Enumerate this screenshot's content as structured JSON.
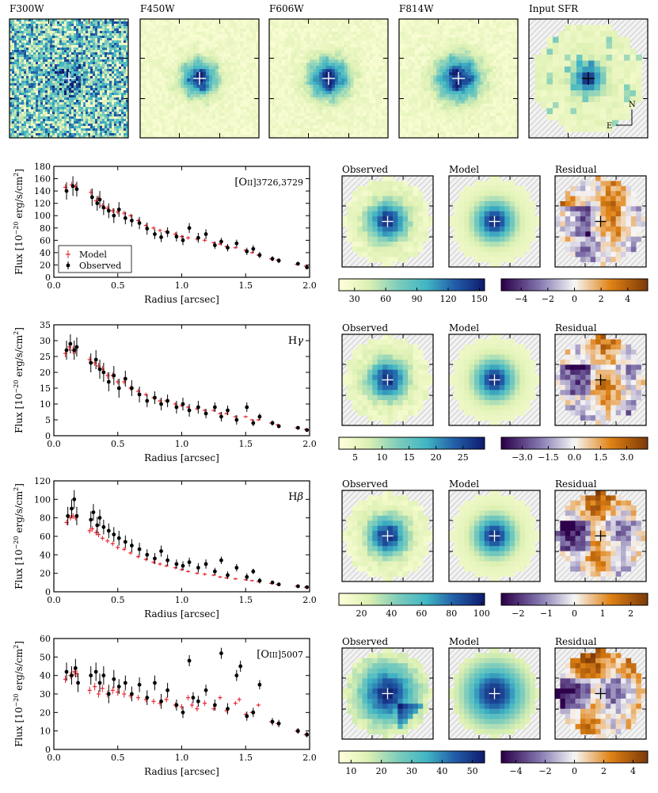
{
  "colors": {
    "model": "#e8202a",
    "observed": "#000000",
    "hatch": "#c8c8c8"
  },
  "image_strip": {
    "panels": [
      {
        "label": "F300W",
        "icon": "noisy-image"
      },
      {
        "label": "F450W",
        "icon": "galaxy-image"
      },
      {
        "label": "F606W",
        "icon": "galaxy-image"
      },
      {
        "label": "F814W",
        "icon": "galaxy-image"
      },
      {
        "label": "Input SFR",
        "icon": "pixel-map"
      }
    ],
    "compass": {
      "north": "N",
      "east": "E"
    }
  },
  "map_titles": {
    "observed": "Observed",
    "model": "Model",
    "residual": "Residual"
  },
  "chart_data": [
    {
      "type": "scatter",
      "line_main": "[O",
      "line_ion": "II",
      "line_tail": "]3726,3729",
      "xlabel": "Radius [arcsec]",
      "ylabel": "Flux  [10",
      "ylabel_exp": "−20",
      "ylabel_units": " erg/s/cm",
      "ylabel_pow": "2",
      "ylabel_close": "]",
      "xlim": [
        0,
        2.0
      ],
      "ylim": [
        0,
        180
      ],
      "xticks": [
        "0.0",
        "0.5",
        "1.0",
        "1.5",
        "2.0"
      ],
      "xtick_values": [
        0,
        0.5,
        1.0,
        1.5,
        2.0
      ],
      "yticks": [
        "0",
        "20",
        "40",
        "60",
        "80",
        "100",
        "120",
        "140",
        "160",
        "180"
      ],
      "ytick_values": [
        0,
        20,
        40,
        60,
        80,
        100,
        120,
        140,
        160,
        180
      ],
      "legend": [
        {
          "name": "Model",
          "marker": "cross"
        },
        {
          "name": "Observed",
          "marker": "dot"
        }
      ],
      "legend_position": "bottom-left",
      "observed": {
        "x": [
          0.09,
          0.14,
          0.17,
          0.29,
          0.33,
          0.35,
          0.38,
          0.42,
          0.46,
          0.5,
          0.55,
          0.6,
          0.66,
          0.72,
          0.78,
          0.83,
          0.88,
          0.95,
          1.0,
          1.05,
          1.12,
          1.18,
          1.25,
          1.3,
          1.35,
          1.42,
          1.5,
          1.55,
          1.6,
          1.7,
          1.75,
          1.9,
          1.97
        ],
        "y": [
          140,
          148,
          143,
          130,
          120,
          126,
          113,
          108,
          100,
          110,
          96,
          92,
          88,
          79,
          70,
          65,
          73,
          66,
          60,
          80,
          64,
          70,
          52,
          58,
          48,
          55,
          42,
          46,
          36,
          30,
          27,
          22,
          16
        ],
        "err": [
          14,
          16,
          12,
          14,
          12,
          14,
          12,
          12,
          12,
          12,
          10,
          10,
          10,
          10,
          8,
          8,
          8,
          8,
          8,
          8,
          8,
          8,
          6,
          6,
          6,
          6,
          6,
          6,
          5,
          4,
          4,
          3,
          3
        ]
      },
      "model": {
        "x": [
          0.09,
          0.14,
          0.17,
          0.29,
          0.33,
          0.35,
          0.38,
          0.42,
          0.46,
          0.5,
          0.55,
          0.6,
          0.66,
          0.72,
          0.78,
          0.83,
          0.88,
          0.95,
          1.0,
          1.05,
          1.12,
          1.18,
          1.25,
          1.3,
          1.35,
          1.42,
          1.5,
          1.55,
          1.6,
          1.7,
          1.75,
          1.9,
          1.97
        ],
        "y": [
          146,
          150,
          147,
          138,
          124,
          128,
          116,
          112,
          108,
          106,
          104,
          100,
          92,
          84,
          80,
          76,
          74,
          70,
          66,
          64,
          62,
          60,
          56,
          54,
          50,
          48,
          44,
          40,
          36,
          30,
          28,
          21,
          18
        ],
        "err": [
          5,
          5,
          5,
          5,
          4,
          4,
          4,
          4,
          4,
          4,
          4,
          3,
          3,
          3,
          3,
          3,
          3,
          3,
          3,
          3,
          3,
          3,
          2,
          2,
          2,
          2,
          2,
          2,
          2,
          2,
          2,
          2,
          2
        ]
      },
      "observed_cbar": {
        "ticks": [
          "30",
          "60",
          "90",
          "120",
          "150"
        ],
        "tick_values": [
          30,
          60,
          90,
          120,
          150
        ],
        "range": [
          15,
          155
        ]
      },
      "residual_cbar": {
        "ticks": [
          "−4",
          "−2",
          "0",
          "2",
          "4"
        ],
        "tick_values": [
          -4,
          -2,
          0,
          2,
          4
        ],
        "range": [
          -5.5,
          5.5
        ]
      }
    },
    {
      "type": "scatter",
      "line_main": "H",
      "line_ion": "",
      "line_tail": "γ",
      "xlabel": "Radius [arcsec]",
      "ylabel": "Flux  [10",
      "ylabel_exp": "−20",
      "ylabel_units": " erg/s/cm",
      "ylabel_pow": "2",
      "ylabel_close": "]",
      "xlim": [
        0,
        2.0
      ],
      "ylim": [
        0,
        35
      ],
      "xticks": [
        "0.0",
        "0.5",
        "1.0",
        "1.5",
        "2.0"
      ],
      "xtick_values": [
        0,
        0.5,
        1.0,
        1.5,
        2.0
      ],
      "yticks": [
        "0",
        "5",
        "10",
        "15",
        "20",
        "25",
        "30",
        "35"
      ],
      "ytick_values": [
        0,
        5,
        10,
        15,
        20,
        25,
        30,
        35
      ],
      "observed": {
        "x": [
          0.09,
          0.12,
          0.15,
          0.17,
          0.28,
          0.32,
          0.35,
          0.38,
          0.42,
          0.46,
          0.5,
          0.55,
          0.6,
          0.66,
          0.72,
          0.78,
          0.83,
          0.88,
          0.95,
          1.0,
          1.05,
          1.12,
          1.18,
          1.25,
          1.3,
          1.35,
          1.42,
          1.5,
          1.55,
          1.6,
          1.7,
          1.75,
          1.9,
          1.97
        ],
        "y": [
          27,
          29,
          27,
          28,
          23,
          24,
          21,
          20,
          17,
          19,
          15,
          18,
          15,
          13,
          11,
          12,
          10,
          11,
          9,
          10,
          8,
          9,
          7,
          9,
          6,
          8,
          5,
          9,
          4,
          6,
          4,
          3,
          2.5,
          1.8
        ],
        "err": [
          3,
          3,
          3,
          3,
          3,
          3,
          3,
          3,
          3,
          3,
          3,
          2.5,
          2.5,
          2.5,
          2,
          2,
          2,
          2,
          2,
          2,
          2,
          2,
          1.5,
          1.5,
          1.5,
          1.5,
          1.5,
          1.5,
          1,
          1,
          0.8,
          0.6,
          0.5,
          0.4
        ]
      },
      "model": {
        "x": [
          0.09,
          0.12,
          0.15,
          0.17,
          0.28,
          0.32,
          0.35,
          0.38,
          0.42,
          0.46,
          0.5,
          0.55,
          0.6,
          0.66,
          0.72,
          0.78,
          0.83,
          0.88,
          0.95,
          1.0,
          1.05,
          1.12,
          1.18,
          1.25,
          1.3,
          1.35,
          1.42,
          1.5,
          1.55,
          1.6,
          1.7,
          1.75,
          1.9,
          1.97
        ],
        "y": [
          26,
          28,
          27,
          27,
          24,
          23,
          22,
          21,
          19,
          19,
          17,
          17,
          15,
          14,
          13,
          12,
          11,
          11,
          10,
          9.5,
          9,
          8.5,
          8,
          8,
          7,
          7,
          6,
          6,
          5,
          5,
          4,
          3.5,
          2.5,
          2
        ],
        "err": [
          1.2,
          1.2,
          1.2,
          1.2,
          1,
          1,
          1,
          1,
          1,
          1,
          0.8,
          0.8,
          0.8,
          0.8,
          0.6,
          0.6,
          0.6,
          0.6,
          0.5,
          0.5,
          0.5,
          0.5,
          0.4,
          0.4,
          0.4,
          0.4,
          0.4,
          0.4,
          0.3,
          0.3,
          0.3,
          0.3,
          0.3,
          0.3
        ]
      },
      "observed_cbar": {
        "ticks": [
          "5",
          "10",
          "15",
          "20",
          "25"
        ],
        "tick_values": [
          5,
          10,
          15,
          20,
          25
        ],
        "range": [
          2,
          29
        ]
      },
      "residual_cbar": {
        "ticks": [
          "−3.0",
          "−1.5",
          "0.0",
          "1.5",
          "3.0"
        ],
        "tick_values": [
          -3,
          -1.5,
          0,
          1.5,
          3
        ],
        "range": [
          -4.2,
          4.2
        ]
      }
    },
    {
      "type": "scatter",
      "line_main": "H",
      "line_ion": "",
      "line_tail": "β",
      "xlabel": "Radius [arcsec]",
      "ylabel": "Flux  [10",
      "ylabel_exp": "−20",
      "ylabel_units": " erg/s/cm",
      "ylabel_pow": "2",
      "ylabel_close": "]",
      "xlim": [
        0,
        2.0
      ],
      "ylim": [
        0,
        120
      ],
      "xticks": [
        "0.0",
        "0.5",
        "1.0",
        "1.5",
        "2.0"
      ],
      "xtick_values": [
        0,
        0.5,
        1.0,
        1.5,
        2.0
      ],
      "yticks": [
        "0",
        "20",
        "40",
        "60",
        "80",
        "100",
        "120"
      ],
      "ytick_values": [
        0,
        20,
        40,
        60,
        80,
        100,
        120
      ],
      "observed": {
        "x": [
          0.1,
          0.13,
          0.15,
          0.17,
          0.28,
          0.3,
          0.33,
          0.35,
          0.38,
          0.42,
          0.46,
          0.5,
          0.55,
          0.6,
          0.66,
          0.72,
          0.78,
          0.83,
          0.88,
          0.95,
          1.0,
          1.05,
          1.12,
          1.18,
          1.25,
          1.3,
          1.35,
          1.42,
          1.5,
          1.55,
          1.6,
          1.7,
          1.75,
          1.9,
          1.97
        ],
        "y": [
          82,
          90,
          100,
          82,
          78,
          86,
          72,
          80,
          70,
          66,
          62,
          58,
          54,
          50,
          46,
          40,
          36,
          44,
          34,
          30,
          28,
          32,
          26,
          30,
          22,
          34,
          18,
          26,
          16,
          22,
          12,
          10,
          8,
          6,
          5
        ],
        "err": [
          10,
          10,
          10,
          10,
          9,
          9,
          9,
          9,
          8,
          8,
          8,
          8,
          7,
          7,
          7,
          6,
          6,
          6,
          6,
          5,
          5,
          5,
          5,
          5,
          4,
          4,
          4,
          4,
          4,
          3,
          3,
          2,
          2,
          1.5,
          1.5
        ]
      },
      "model": {
        "x": [
          0.1,
          0.13,
          0.15,
          0.17,
          0.28,
          0.3,
          0.33,
          0.35,
          0.38,
          0.42,
          0.46,
          0.5,
          0.55,
          0.6,
          0.66,
          0.72,
          0.78,
          0.83,
          0.88,
          0.95,
          1.0,
          1.05,
          1.12,
          1.18,
          1.25,
          1.3,
          1.35,
          1.42,
          1.5,
          1.55,
          1.6,
          1.7,
          1.75,
          1.9,
          1.97
        ],
        "y": [
          75,
          80,
          82,
          80,
          66,
          68,
          64,
          62,
          58,
          55,
          52,
          48,
          46,
          42,
          38,
          35,
          32,
          30,
          28,
          26,
          24,
          22,
          20,
          19,
          18,
          16,
          15,
          14,
          13,
          12,
          11,
          9,
          8,
          6,
          5
        ],
        "err": [
          3,
          3,
          3,
          3,
          3,
          3,
          3,
          3,
          2.5,
          2.5,
          2.5,
          2.5,
          2,
          2,
          2,
          2,
          2,
          2,
          1.5,
          1.5,
          1.5,
          1.5,
          1.5,
          1.5,
          1.2,
          1.2,
          1.2,
          1.2,
          1,
          1,
          1,
          1,
          1,
          1,
          1
        ]
      },
      "observed_cbar": {
        "ticks": [
          "20",
          "40",
          "60",
          "80",
          "100"
        ],
        "tick_values": [
          20,
          40,
          60,
          80,
          100
        ],
        "range": [
          5,
          102
        ]
      },
      "residual_cbar": {
        "ticks": [
          "−2",
          "−1",
          "0",
          "1",
          "2"
        ],
        "tick_values": [
          -2,
          -1,
          0,
          1,
          2
        ],
        "range": [
          -2.6,
          2.6
        ]
      }
    },
    {
      "type": "scatter",
      "line_main": "[O",
      "line_ion": "III",
      "line_tail": "]5007",
      "xlabel": "Radius [arcsec]",
      "ylabel": "Flux  [10",
      "ylabel_exp": "−20",
      "ylabel_units": " erg/s/cm",
      "ylabel_pow": "2",
      "ylabel_close": "]",
      "xlim": [
        0,
        2.0
      ],
      "ylim": [
        0,
        60
      ],
      "xticks": [
        "0.0",
        "0.5",
        "1.0",
        "1.5",
        "2.0"
      ],
      "xtick_values": [
        0,
        0.5,
        1.0,
        1.5,
        2.0
      ],
      "yticks": [
        "0",
        "10",
        "20",
        "30",
        "40",
        "50",
        "60"
      ],
      "ytick_values": [
        0,
        10,
        20,
        30,
        40,
        50,
        60
      ],
      "observed": {
        "x": [
          0.09,
          0.13,
          0.16,
          0.18,
          0.28,
          0.32,
          0.35,
          0.38,
          0.42,
          0.46,
          0.5,
          0.55,
          0.6,
          0.66,
          0.72,
          0.78,
          0.83,
          0.88,
          0.95,
          1.0,
          1.05,
          1.08,
          1.12,
          1.18,
          1.25,
          1.3,
          1.35,
          1.42,
          1.45,
          1.5,
          1.55,
          1.6,
          1.7,
          1.75,
          1.9,
          1.97
        ],
        "y": [
          42,
          40,
          44,
          36,
          40,
          42,
          36,
          40,
          30,
          38,
          34,
          36,
          30,
          35,
          28,
          36,
          26,
          32,
          24,
          20,
          48,
          28,
          26,
          32,
          24,
          52,
          22,
          40,
          45,
          18,
          20,
          35,
          15,
          14,
          10,
          8
        ],
        "err": [
          5,
          5,
          5,
          5,
          5,
          5,
          5,
          5,
          5,
          5,
          4,
          4,
          4,
          4,
          4,
          4,
          4,
          4,
          3,
          3,
          3,
          3,
          3,
          3,
          3,
          3,
          3,
          3,
          3,
          2.5,
          2.5,
          2.5,
          2,
          2,
          1.5,
          1.5
        ]
      },
      "model": {
        "x": [
          0.09,
          0.13,
          0.16,
          0.18,
          0.28,
          0.32,
          0.35,
          0.38,
          0.42,
          0.46,
          0.5,
          0.55,
          0.6,
          0.66,
          0.72,
          0.78,
          0.83,
          0.88,
          0.95,
          1.0,
          1.05,
          1.08,
          1.12,
          1.18,
          1.25,
          1.3,
          1.35,
          1.42,
          1.45,
          1.5,
          1.55,
          1.6,
          1.7,
          1.75,
          1.9,
          1.97
        ],
        "y": [
          38,
          40,
          42,
          41,
          32,
          34,
          30,
          33,
          30,
          32,
          31,
          30,
          29,
          28,
          27,
          26,
          25,
          27,
          24,
          23,
          28,
          24,
          22,
          25,
          22,
          28,
          21,
          25,
          27,
          19,
          20,
          24,
          15,
          14,
          10,
          8
        ],
        "err": [
          2,
          2,
          2,
          2,
          2,
          2,
          2,
          2,
          2,
          2,
          2,
          2,
          1.5,
          1.5,
          1.5,
          1.5,
          1.5,
          1.5,
          1.5,
          1.5,
          1.5,
          1.5,
          1.5,
          1.5,
          1.2,
          1.2,
          1.2,
          1.2,
          1.2,
          1,
          1,
          1,
          1,
          1,
          1,
          1
        ]
      },
      "observed_cbar": {
        "ticks": [
          "10",
          "20",
          "30",
          "40",
          "50"
        ],
        "tick_values": [
          10,
          20,
          30,
          40,
          50
        ],
        "range": [
          6,
          54
        ]
      },
      "residual_cbar": {
        "ticks": [
          "−4",
          "−2",
          "0",
          "2",
          "4"
        ],
        "tick_values": [
          -4,
          -2,
          0,
          2,
          4
        ],
        "range": [
          -5,
          5
        ]
      }
    }
  ]
}
